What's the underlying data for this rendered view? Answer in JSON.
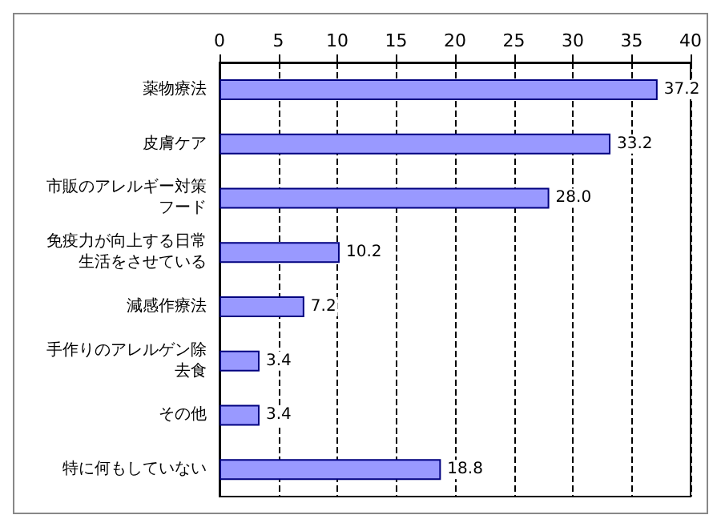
{
  "chart_data": {
    "type": "bar",
    "orientation": "horizontal",
    "categories": [
      "薬物療法",
      "皮膚ケア",
      "市販のアレルギー対策フード",
      "免疫力が向上する日常生活をさせている",
      "減感作療法",
      "手作りのアレルゲン除去食",
      "その他",
      "特に何もしていない"
    ],
    "values": [
      37.2,
      33.2,
      28.0,
      10.2,
      7.2,
      3.4,
      3.4,
      18.8
    ],
    "value_labels": [
      "37.2",
      "33.2",
      "28.0",
      "10.2",
      "7.2",
      "3.4",
      "3.4",
      "18.8"
    ],
    "color": "#9999ff",
    "xlim": [
      0,
      40
    ],
    "xticks": [
      0,
      5,
      10,
      15,
      20,
      25,
      30,
      35,
      40
    ],
    "grid": "x"
  }
}
